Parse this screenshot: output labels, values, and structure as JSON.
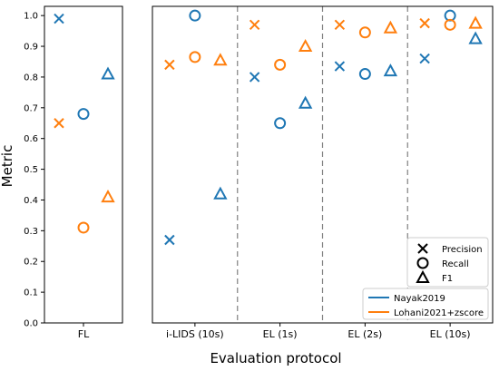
{
  "chart_data": {
    "type": "scatter",
    "ylabel": "Metric",
    "xlabel": "Evaluation protocol",
    "ylim": [
      0.0,
      1.03
    ],
    "yticks": [
      0.0,
      0.1,
      0.2,
      0.3,
      0.4,
      0.5,
      0.6,
      0.7,
      0.8,
      0.9,
      1.0
    ],
    "ytick_labels": [
      "0.0",
      "0.1",
      "0.2",
      "0.3",
      "0.4",
      "0.5",
      "0.6",
      "0.7",
      "0.8",
      "0.9",
      "1.0"
    ],
    "metrics": [
      "Precision",
      "Recall",
      "F1"
    ],
    "marker_legend": [
      {
        "metric": "Precision",
        "label": "Precision",
        "marker": "x"
      },
      {
        "metric": "Recall",
        "label": "Recall",
        "marker": "o"
      },
      {
        "metric": "F1",
        "label": "F1",
        "marker": "^"
      }
    ],
    "series": [
      {
        "name": "Nayak2019",
        "color": "#1f77b4"
      },
      {
        "name": "Lohani2021+zscore",
        "color": "#ff7f0e"
      }
    ],
    "panels": [
      {
        "categories": [
          "FL"
        ],
        "points": [
          {
            "category": "FL",
            "series": "Nayak2019",
            "metric": "Precision",
            "value": 0.99
          },
          {
            "category": "FL",
            "series": "Nayak2019",
            "metric": "Recall",
            "value": 0.68
          },
          {
            "category": "FL",
            "series": "Nayak2019",
            "metric": "F1",
            "value": 0.81
          },
          {
            "category": "FL",
            "series": "Lohani2021+zscore",
            "metric": "Precision",
            "value": 0.65
          },
          {
            "category": "FL",
            "series": "Lohani2021+zscore",
            "metric": "Recall",
            "value": 0.31
          },
          {
            "category": "FL",
            "series": "Lohani2021+zscore",
            "metric": "F1",
            "value": 0.41
          }
        ]
      },
      {
        "categories": [
          "i-LIDS (10s)",
          "EL (1s)",
          "EL (2s)",
          "EL (10s)"
        ],
        "points": [
          {
            "category": "i-LIDS (10s)",
            "series": "Nayak2019",
            "metric": "Precision",
            "value": 0.27
          },
          {
            "category": "i-LIDS (10s)",
            "series": "Nayak2019",
            "metric": "Recall",
            "value": 1.0
          },
          {
            "category": "i-LIDS (10s)",
            "series": "Nayak2019",
            "metric": "F1",
            "value": 0.42
          },
          {
            "category": "i-LIDS (10s)",
            "series": "Lohani2021+zscore",
            "metric": "Precision",
            "value": 0.84
          },
          {
            "category": "i-LIDS (10s)",
            "series": "Lohani2021+zscore",
            "metric": "Recall",
            "value": 0.865
          },
          {
            "category": "i-LIDS (10s)",
            "series": "Lohani2021+zscore",
            "metric": "F1",
            "value": 0.855
          },
          {
            "category": "EL (1s)",
            "series": "Nayak2019",
            "metric": "Precision",
            "value": 0.8
          },
          {
            "category": "EL (1s)",
            "series": "Nayak2019",
            "metric": "Recall",
            "value": 0.65
          },
          {
            "category": "EL (1s)",
            "series": "Nayak2019",
            "metric": "F1",
            "value": 0.715
          },
          {
            "category": "EL (1s)",
            "series": "Lohani2021+zscore",
            "metric": "Precision",
            "value": 0.97
          },
          {
            "category": "EL (1s)",
            "series": "Lohani2021+zscore",
            "metric": "Recall",
            "value": 0.84
          },
          {
            "category": "EL (1s)",
            "series": "Lohani2021+zscore",
            "metric": "F1",
            "value": 0.9
          },
          {
            "category": "EL (2s)",
            "series": "Nayak2019",
            "metric": "Precision",
            "value": 0.835
          },
          {
            "category": "EL (2s)",
            "series": "Nayak2019",
            "metric": "Recall",
            "value": 0.81
          },
          {
            "category": "EL (2s)",
            "series": "Nayak2019",
            "metric": "F1",
            "value": 0.82
          },
          {
            "category": "EL (2s)",
            "series": "Lohani2021+zscore",
            "metric": "Precision",
            "value": 0.97
          },
          {
            "category": "EL (2s)",
            "series": "Lohani2021+zscore",
            "metric": "Recall",
            "value": 0.945
          },
          {
            "category": "EL (2s)",
            "series": "Lohani2021+zscore",
            "metric": "F1",
            "value": 0.96
          },
          {
            "category": "EL (10s)",
            "series": "Nayak2019",
            "metric": "Precision",
            "value": 0.86
          },
          {
            "category": "EL (10s)",
            "series": "Nayak2019",
            "metric": "Recall",
            "value": 1.0
          },
          {
            "category": "EL (10s)",
            "series": "Nayak2019",
            "metric": "F1",
            "value": 0.925
          },
          {
            "category": "EL (10s)",
            "series": "Lohani2021+zscore",
            "metric": "Precision",
            "value": 0.975
          },
          {
            "category": "EL (10s)",
            "series": "Lohani2021+zscore",
            "metric": "Recall",
            "value": 0.97
          },
          {
            "category": "EL (10s)",
            "series": "Lohani2021+zscore",
            "metric": "F1",
            "value": 0.975
          }
        ]
      }
    ],
    "legend_position": "lower-right",
    "grid": false
  }
}
